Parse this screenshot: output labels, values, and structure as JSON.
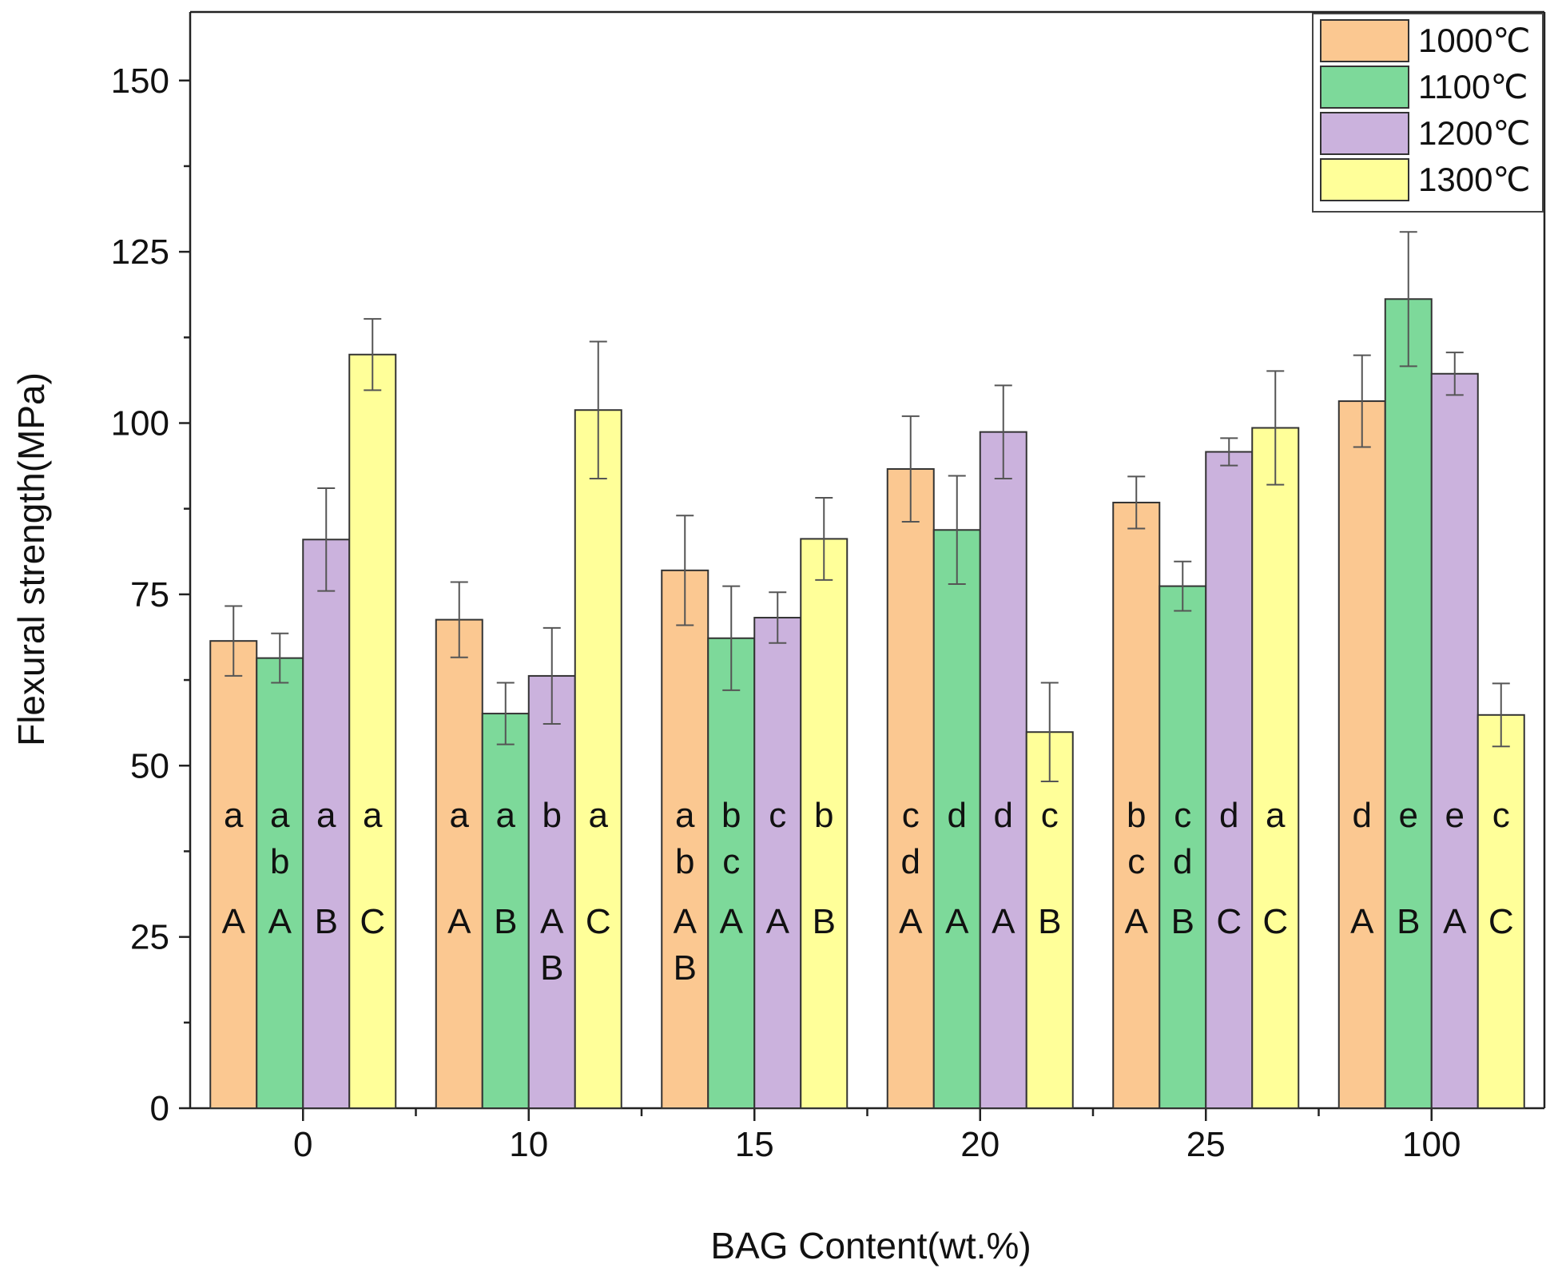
{
  "chart_data": {
    "type": "bar",
    "title": "",
    "xlabel": "BAG Content(wt.%)",
    "ylabel": "Flexural strength(MPa)",
    "ylim": [
      0,
      160
    ],
    "yticks": [
      0,
      25,
      50,
      75,
      100,
      125,
      150
    ],
    "categories": [
      "0",
      "10",
      "15",
      "20",
      "25",
      "100"
    ],
    "legend_position": "top-right",
    "series": [
      {
        "name": "1000℃",
        "color": "#FBC891",
        "values": [
          68.2,
          71.3,
          78.5,
          93.3,
          88.4,
          103.2
        ],
        "errors": [
          5.1,
          5.5,
          8.0,
          7.7,
          3.8,
          6.7
        ],
        "letters_lower": [
          "a",
          "a",
          "a b",
          "c d",
          "b c",
          "d"
        ],
        "letters_upper": [
          "A",
          "A",
          "A B",
          "A",
          "A",
          "A"
        ]
      },
      {
        "name": "1100℃",
        "color": "#7DD99A",
        "values": [
          65.7,
          57.6,
          68.6,
          84.4,
          76.2,
          118.1
        ],
        "errors": [
          3.6,
          4.5,
          7.6,
          7.9,
          3.6,
          9.8
        ],
        "letters_lower": [
          "a b",
          "a",
          "b c",
          "d",
          "c d",
          "e"
        ],
        "letters_upper": [
          "A",
          "B",
          "A",
          "A",
          "B",
          "B"
        ]
      },
      {
        "name": "1200℃",
        "color": "#CBB2DD",
        "values": [
          83.0,
          63.1,
          71.6,
          98.7,
          95.8,
          107.2
        ],
        "errors": [
          7.5,
          7.0,
          3.7,
          6.8,
          2.0,
          3.1
        ],
        "letters_lower": [
          "a",
          "b",
          "c",
          "d",
          "d",
          "e"
        ],
        "letters_upper": [
          "B",
          "A B",
          "A",
          "A",
          "C",
          "A"
        ]
      },
      {
        "name": "1300℃",
        "color": "#FFFF99",
        "values": [
          110.0,
          101.9,
          83.1,
          54.9,
          99.3,
          57.4
        ],
        "errors": [
          5.2,
          10.0,
          6.0,
          7.2,
          8.3,
          4.6
        ],
        "letters_lower": [
          "a",
          "a",
          "b",
          "c",
          "a",
          "c"
        ],
        "letters_upper": [
          "C",
          "C",
          "B",
          "B",
          "C",
          "C"
        ]
      }
    ]
  }
}
